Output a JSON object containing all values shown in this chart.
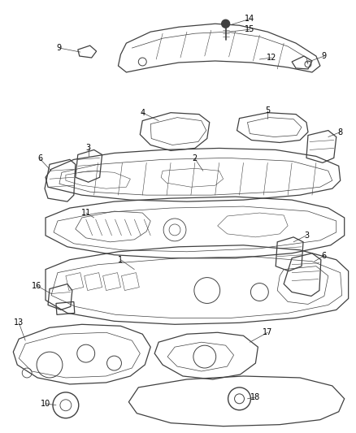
{
  "background": "#ffffff",
  "line_color": "#404040",
  "figsize": [
    4.38,
    5.33
  ],
  "dpi": 100,
  "lw_main": 0.9,
  "lw_thin": 0.5,
  "lw_detail": 0.4
}
